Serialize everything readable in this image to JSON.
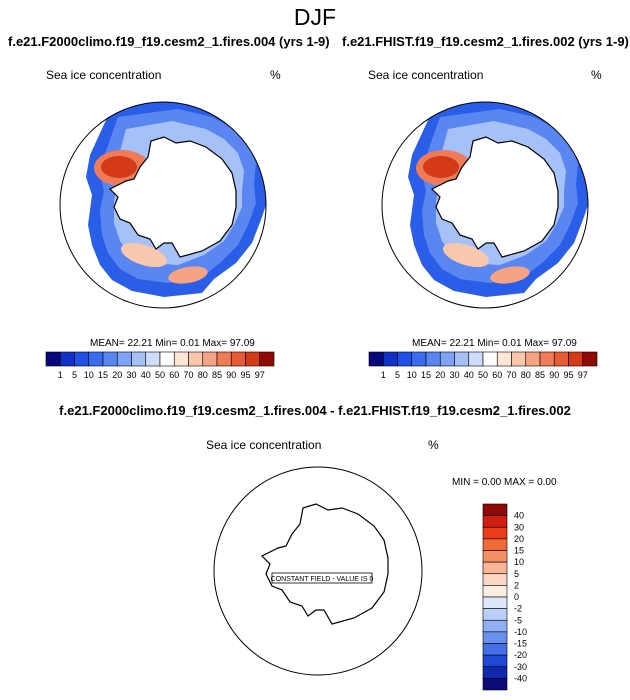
{
  "page": {
    "title": "DJF"
  },
  "panel_left": {
    "title": "f.e21.F2000climo.f19_f19.cesm2_1.fires.004 (yrs 1-9)",
    "variable": "Sea ice concentration",
    "units": "%",
    "mean_label": "MEAN=",
    "mean": "22.21",
    "min_label": "Min=",
    "min": "0.01",
    "max_label": "Max=",
    "max": "97.09"
  },
  "panel_right": {
    "title": "f.e21.FHIST.f19_f19.cesm2_1.fires.002 (yrs 1-9)",
    "variable": "Sea ice concentration",
    "units": "%",
    "mean_label": "MEAN=",
    "mean": "22.21",
    "min_label": "Min=",
    "min": "0.01",
    "max_label": "Max=",
    "max": "97.09"
  },
  "panel_diff": {
    "title": "f.e21.F2000climo.f19_f19.cesm2_1.fires.004 - f.e21.FHIST.f19_f19.cesm2_1.fires.002",
    "variable": "Sea ice concentration",
    "units": "%",
    "min_label": "MIN =",
    "min": "0.00",
    "max_label": "MAX =",
    "max": "0.00",
    "constant_label": "CONSTANT FIELD - VALUE IS 0"
  },
  "chart_data": [
    {
      "type": "heatmap",
      "projection": "south-polar-stereographic",
      "title": "f.e21.F2000climo.f19_f19.cesm2_1.fires.004 (yrs 1-9)",
      "variable": "Sea ice concentration",
      "units": "%",
      "mean": 22.21,
      "min": 0.01,
      "max": 97.09,
      "colorbar_levels": [
        "1",
        "5",
        "10",
        "15",
        "20",
        "30",
        "40",
        "50",
        "60",
        "70",
        "80",
        "85",
        "90",
        "95",
        "97"
      ],
      "colorbar_colors": [
        "#08087a",
        "#1230c8",
        "#2050e6",
        "#3a6cf0",
        "#5a86f2",
        "#7ea2f5",
        "#a6c0f8",
        "#cfdcfb",
        "#ffffff",
        "#fde6d6",
        "#f9c7ad",
        "#f5a383",
        "#ef7b59",
        "#e65a34",
        "#d43a18",
        "#8f0a06"
      ]
    },
    {
      "type": "heatmap",
      "projection": "south-polar-stereographic",
      "title": "f.e21.FHIST.f19_f19.cesm2_1.fires.002 (yrs 1-9)",
      "variable": "Sea ice concentration",
      "units": "%",
      "mean": 22.21,
      "min": 0.01,
      "max": 97.09,
      "colorbar_levels": [
        "1",
        "5",
        "10",
        "15",
        "20",
        "30",
        "40",
        "50",
        "60",
        "70",
        "80",
        "85",
        "90",
        "95",
        "97"
      ],
      "colorbar_colors": [
        "#08087a",
        "#1230c8",
        "#2050e6",
        "#3a6cf0",
        "#5a86f2",
        "#7ea2f5",
        "#a6c0f8",
        "#cfdcfb",
        "#ffffff",
        "#fde6d6",
        "#f9c7ad",
        "#f5a383",
        "#ef7b59",
        "#e65a34",
        "#d43a18",
        "#8f0a06"
      ]
    },
    {
      "type": "heatmap",
      "projection": "south-polar-stereographic",
      "title": "f.e21.F2000climo.f19_f19.cesm2_1.fires.004 - f.e21.FHIST.f19_f19.cesm2_1.fires.002",
      "variable": "Sea ice concentration",
      "units": "%",
      "min": 0.0,
      "max": 0.0,
      "constant_field_value": 0,
      "colorbar_levels": [
        "40",
        "30",
        "20",
        "15",
        "10",
        "5",
        "2",
        "0",
        "-2",
        "-5",
        "-10",
        "-15",
        "-20",
        "-30",
        "-40"
      ],
      "colorbar_colors": [
        "#8f0a06",
        "#d01e10",
        "#ea3c1c",
        "#f26a36",
        "#f6905e",
        "#f9b595",
        "#fcd6c2",
        "#fdeee4",
        "#dce8f8",
        "#b9cff5",
        "#8fb0f2",
        "#6a90ee",
        "#4470e6",
        "#2048d6",
        "#1028b0",
        "#0a0a78"
      ]
    }
  ]
}
